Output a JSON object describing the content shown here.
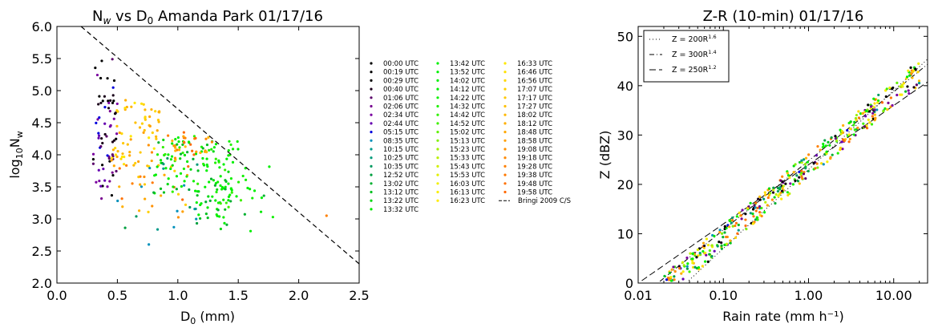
{
  "chart_data": [
    {
      "type": "scatter",
      "title": "N_w vs D_0 Amanda Park 01/17/16",
      "title_parts": {
        "a": "N",
        "a_sub": "w",
        "b": " vs D",
        "b_sub": "0",
        "c": " Amanda Park 01/17/16"
      },
      "xlabel": "D_0 (mm)",
      "xlabel_parts": {
        "main": "D",
        "sub": "0",
        "rest": " (mm)"
      },
      "ylabel": "log10 N_w",
      "ylabel_parts": {
        "main": "log",
        "sub1": "10",
        "mid": "N",
        "sub2": "w"
      },
      "xlim": [
        0.0,
        2.5
      ],
      "ylim": [
        2.0,
        6.0
      ],
      "xticks": [
        "0.0",
        "0.5",
        "1.0",
        "1.5",
        "2.0",
        "2.5"
      ],
      "yticks": [
        "2.0",
        "2.5",
        "3.0",
        "3.5",
        "4.0",
        "4.5",
        "5.0",
        "5.5",
        "6.0"
      ],
      "grid": false,
      "legend_placement": "outside-right",
      "series": [
        {
          "name": "00:00 UTC",
          "color": "#000000"
        },
        {
          "name": "00:19 UTC",
          "color": "#000000"
        },
        {
          "name": "00:29 UTC",
          "color": "#000000"
        },
        {
          "name": "00:40 UTC",
          "color": "#1a001a"
        },
        {
          "name": "01:06 UTC",
          "color": "#5a006a"
        },
        {
          "name": "02:06 UTC",
          "color": "#77008f"
        },
        {
          "name": "02:34 UTC",
          "color": "#7a00a0"
        },
        {
          "name": "02:44 UTC",
          "color": "#6500b0"
        },
        {
          "name": "05:15 UTC",
          "color": "#0000dd"
        },
        {
          "name": "08:35 UTC",
          "color": "#0090bb"
        },
        {
          "name": "10:15 UTC",
          "color": "#009a8a"
        },
        {
          "name": "10:25 UTC",
          "color": "#009a7a"
        },
        {
          "name": "10:35 UTC",
          "color": "#009a60"
        },
        {
          "name": "12:52 UTC",
          "color": "#00a040"
        },
        {
          "name": "13:02 UTC",
          "color": "#00b030"
        },
        {
          "name": "13:12 UTC",
          "color": "#00c020"
        },
        {
          "name": "13:22 UTC",
          "color": "#00d810"
        },
        {
          "name": "13:32 UTC",
          "color": "#00e800"
        },
        {
          "name": "13:42 UTC",
          "color": "#00f000"
        },
        {
          "name": "13:52 UTC",
          "color": "#00f000"
        },
        {
          "name": "14:02 UTC",
          "color": "#00f000"
        },
        {
          "name": "14:12 UTC",
          "color": "#00f000"
        },
        {
          "name": "14:22 UTC",
          "color": "#10f000"
        },
        {
          "name": "14:32 UTC",
          "color": "#20f000"
        },
        {
          "name": "14:42 UTC",
          "color": "#30f000"
        },
        {
          "name": "14:52 UTC",
          "color": "#40f000"
        },
        {
          "name": "15:02 UTC",
          "color": "#60f000"
        },
        {
          "name": "15:13 UTC",
          "color": "#80f000"
        },
        {
          "name": "15:23 UTC",
          "color": "#a0f000"
        },
        {
          "name": "15:33 UTC",
          "color": "#b8f000"
        },
        {
          "name": "15:43 UTC",
          "color": "#cff000"
        },
        {
          "name": "15:53 UTC",
          "color": "#e0f000"
        },
        {
          "name": "16:03 UTC",
          "color": "#f0f000"
        },
        {
          "name": "16:13 UTC",
          "color": "#f8f000"
        },
        {
          "name": "16:23 UTC",
          "color": "#ffec00"
        },
        {
          "name": "16:33 UTC",
          "color": "#ffe800"
        },
        {
          "name": "16:46 UTC",
          "color": "#ffe000"
        },
        {
          "name": "16:56 UTC",
          "color": "#ffd800"
        },
        {
          "name": "17:07 UTC",
          "color": "#ffd000"
        },
        {
          "name": "17:17 UTC",
          "color": "#ffc800"
        },
        {
          "name": "17:27 UTC",
          "color": "#ffc000"
        },
        {
          "name": "18:02 UTC",
          "color": "#ffb800"
        },
        {
          "name": "18:12 UTC",
          "color": "#ffb000"
        },
        {
          "name": "18:48 UTC",
          "color": "#ffa800"
        },
        {
          "name": "18:58 UTC",
          "color": "#ffa000"
        },
        {
          "name": "19:08 UTC",
          "color": "#ff9000"
        },
        {
          "name": "19:18 UTC",
          "color": "#ff8800"
        },
        {
          "name": "19:28 UTC",
          "color": "#ff8000"
        },
        {
          "name": "19:38 UTC",
          "color": "#ff7800"
        },
        {
          "name": "19:48 UTC",
          "color": "#ff7000"
        },
        {
          "name": "19:58 UTC",
          "color": "#ff6800"
        }
      ],
      "reference_line": {
        "name": "Bringi 2009 C/S",
        "x": [
          0.2,
          2.5
        ],
        "y": [
          6.0,
          2.3
        ],
        "style": "dashed"
      },
      "clusters": [
        {
          "x": [
            0.3,
            0.5
          ],
          "y": [
            3.3,
            5.5
          ],
          "n": 70,
          "c": [
            0,
            8
          ]
        },
        {
          "x": [
            0.45,
            0.85
          ],
          "y": [
            3.8,
            4.9
          ],
          "n": 60,
          "c": [
            35,
            44
          ]
        },
        {
          "x": [
            0.5,
            1.1
          ],
          "y": [
            3.0,
            4.4
          ],
          "n": 40,
          "c": [
            38,
            50
          ]
        },
        {
          "x": [
            0.8,
            1.5
          ],
          "y": [
            3.4,
            4.3
          ],
          "n": 110,
          "c": [
            14,
            24
          ]
        },
        {
          "x": [
            1.15,
            1.45
          ],
          "y": [
            2.9,
            3.5
          ],
          "n": 35,
          "c": [
            14,
            22
          ]
        },
        {
          "x": [
            1.3,
            1.8
          ],
          "y": [
            2.8,
            4.0
          ],
          "n": 25,
          "c": [
            14,
            26
          ]
        },
        {
          "x": [
            0.5,
            1.2
          ],
          "y": [
            2.5,
            4.0
          ],
          "n": 20,
          "c": [
            9,
            13
          ]
        },
        {
          "x": [
            0.95,
            1.3
          ],
          "y": [
            3.9,
            4.3
          ],
          "n": 25,
          "c": [
            41,
            50
          ]
        },
        {
          "x": [
            2.23,
            2.23
          ],
          "y": [
            3.05,
            3.05
          ],
          "n": 1,
          "c": [
            47,
            47
          ]
        }
      ]
    },
    {
      "type": "scatter",
      "title": "Z-R (10-min) 01/17/16",
      "xlabel": "Rain rate (mm h⁻¹)",
      "ylabel": "Z (dBZ)",
      "xscale": "log",
      "xlim": [
        0.01,
        25
      ],
      "ylim": [
        0,
        52
      ],
      "xticks": [
        "0.01",
        "0.10",
        "1.00",
        "10.00"
      ],
      "yticks": [
        "0",
        "10",
        "20",
        "30",
        "40",
        "50"
      ],
      "grid": false,
      "legend_placement": "top-left",
      "legend": [
        {
          "label": "Z = 200R",
          "exp": "1.6",
          "a": 200,
          "b": 1.6,
          "dash": "1,3"
        },
        {
          "label": "Z = 300R",
          "exp": "1.4",
          "a": 300,
          "b": 1.4,
          "dash": "6,3,1,3"
        },
        {
          "label": "Z = 250R",
          "exp": "1.2",
          "a": 250,
          "b": 1.2,
          "dash": "8,4"
        }
      ],
      "point_relation": {
        "a": 240,
        "b": 1.45,
        "x_range": [
          0.02,
          20
        ],
        "n": 420
      }
    }
  ]
}
